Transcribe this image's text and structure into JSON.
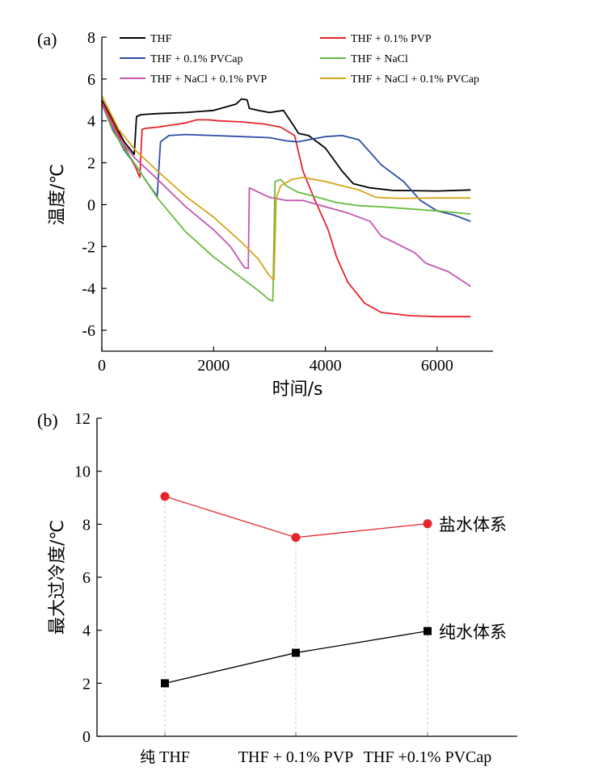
{
  "chart_data": [
    {
      "type": "line",
      "panel_label": "(a)",
      "xlabel": "时间/s",
      "ylabel": "温度/℃",
      "xlim": [
        0,
        7000
      ],
      "ylim": [
        -7,
        8
      ],
      "xticks": [
        0,
        2000,
        4000,
        6000
      ],
      "yticks": [
        8,
        6,
        4,
        2,
        0,
        -2,
        -4,
        -6
      ],
      "xtick_labels": [
        "0",
        "2000",
        "4000",
        "6000"
      ],
      "ytick_labels": [
        "8",
        "6",
        "4",
        "2",
        "0",
        "-2",
        "-4",
        "-6"
      ],
      "legend_placement": "top",
      "series": [
        {
          "name": "THF",
          "color": "#000000",
          "points": [
            [
              0,
              5.0
            ],
            [
              200,
              4.0
            ],
            [
              400,
              3.0
            ],
            [
              580,
              2.4
            ],
            [
              620,
              4.2
            ],
            [
              700,
              4.3
            ],
            [
              1000,
              4.35
            ],
            [
              1500,
              4.4
            ],
            [
              2000,
              4.5
            ],
            [
              2400,
              4.8
            ],
            [
              2500,
              5.05
            ],
            [
              2600,
              5.0
            ],
            [
              2640,
              4.6
            ],
            [
              2800,
              4.5
            ],
            [
              3000,
              4.4
            ],
            [
              3250,
              4.5
            ],
            [
              3350,
              4.1
            ],
            [
              3450,
              3.7
            ],
            [
              3520,
              3.4
            ],
            [
              3700,
              3.3
            ],
            [
              4000,
              2.7
            ],
            [
              4300,
              1.6
            ],
            [
              4500,
              1.0
            ],
            [
              4800,
              0.8
            ],
            [
              5200,
              0.68
            ],
            [
              6000,
              0.65
            ],
            [
              6600,
              0.7
            ]
          ]
        },
        {
          "name": "THF + 0.1% PVP",
          "color": "#e4262b",
          "points": [
            [
              0,
              4.9
            ],
            [
              200,
              3.9
            ],
            [
              400,
              2.8
            ],
            [
              600,
              1.8
            ],
            [
              680,
              1.3
            ],
            [
              720,
              3.6
            ],
            [
              800,
              3.65
            ],
            [
              1000,
              3.7
            ],
            [
              1500,
              3.9
            ],
            [
              1700,
              4.05
            ],
            [
              1900,
              4.05
            ],
            [
              2100,
              4.0
            ],
            [
              2500,
              3.95
            ],
            [
              2900,
              3.85
            ],
            [
              3200,
              3.7
            ],
            [
              3450,
              3.3
            ],
            [
              3600,
              1.6
            ],
            [
              3800,
              0.3
            ],
            [
              3950,
              -0.6
            ],
            [
              4050,
              -1.2
            ],
            [
              4200,
              -2.5
            ],
            [
              4400,
              -3.7
            ],
            [
              4700,
              -4.7
            ],
            [
              5000,
              -5.15
            ],
            [
              5500,
              -5.3
            ],
            [
              6000,
              -5.35
            ],
            [
              6600,
              -5.35
            ]
          ]
        },
        {
          "name": "THF + 0.1% PVCap",
          "color": "#2b4fa8",
          "points": [
            [
              0,
              4.8
            ],
            [
              200,
              3.6
            ],
            [
              400,
              2.6
            ],
            [
              600,
              1.9
            ],
            [
              800,
              1.1
            ],
            [
              990,
              0.4
            ],
            [
              1050,
              3.0
            ],
            [
              1200,
              3.3
            ],
            [
              1500,
              3.35
            ],
            [
              2000,
              3.3
            ],
            [
              2500,
              3.25
            ],
            [
              3000,
              3.2
            ],
            [
              3300,
              3.05
            ],
            [
              3500,
              3.0
            ],
            [
              3700,
              3.1
            ],
            [
              4000,
              3.25
            ],
            [
              4300,
              3.3
            ],
            [
              4600,
              3.1
            ],
            [
              4800,
              2.5
            ],
            [
              5000,
              1.9
            ],
            [
              5400,
              1.1
            ],
            [
              5700,
              0.2
            ],
            [
              6000,
              -0.3
            ],
            [
              6300,
              -0.5
            ],
            [
              6600,
              -0.8
            ]
          ]
        },
        {
          "name": "THF + NaCl",
          "color": "#66bb3d",
          "points": [
            [
              0,
              4.8
            ],
            [
              200,
              3.5
            ],
            [
              500,
              2.3
            ],
            [
              800,
              1.1
            ],
            [
              1000,
              0.3
            ],
            [
              1500,
              -1.3
            ],
            [
              2000,
              -2.5
            ],
            [
              2500,
              -3.5
            ],
            [
              2800,
              -4.1
            ],
            [
              3000,
              -4.55
            ],
            [
              3060,
              -4.6
            ],
            [
              3100,
              1.1
            ],
            [
              3200,
              1.2
            ],
            [
              3300,
              0.9
            ],
            [
              3500,
              0.6
            ],
            [
              3800,
              0.4
            ],
            [
              4200,
              0.1
            ],
            [
              4600,
              -0.05
            ],
            [
              5000,
              -0.1
            ],
            [
              5500,
              -0.2
            ],
            [
              6000,
              -0.3
            ],
            [
              6600,
              -0.45
            ]
          ]
        },
        {
          "name": "THF + NaCl + 0.1% PVP",
          "color": "#c456b0",
          "points": [
            [
              0,
              4.8
            ],
            [
              300,
              3.2
            ],
            [
              600,
              2.2
            ],
            [
              1000,
              1.2
            ],
            [
              1500,
              -0.1
            ],
            [
              2000,
              -1.2
            ],
            [
              2300,
              -2.0
            ],
            [
              2550,
              -3.0
            ],
            [
              2620,
              -3.05
            ],
            [
              2640,
              0.8
            ],
            [
              2800,
              0.6
            ],
            [
              3000,
              0.35
            ],
            [
              3300,
              0.2
            ],
            [
              3600,
              0.2
            ],
            [
              4000,
              -0.1
            ],
            [
              4400,
              -0.4
            ],
            [
              4800,
              -0.8
            ],
            [
              5000,
              -1.5
            ],
            [
              5300,
              -1.9
            ],
            [
              5600,
              -2.3
            ],
            [
              5800,
              -2.8
            ],
            [
              6200,
              -3.2
            ],
            [
              6600,
              -3.9
            ]
          ]
        },
        {
          "name": "THF + NaCl + 0.1% PVCap",
          "color": "#d5a41a",
          "points": [
            [
              0,
              5.2
            ],
            [
              300,
              3.6
            ],
            [
              600,
              2.6
            ],
            [
              1000,
              1.6
            ],
            [
              1500,
              0.4
            ],
            [
              2000,
              -0.6
            ],
            [
              2500,
              -1.8
            ],
            [
              2800,
              -2.6
            ],
            [
              3000,
              -3.4
            ],
            [
              3080,
              -3.6
            ],
            [
              3120,
              0.3
            ],
            [
              3200,
              0.9
            ],
            [
              3400,
              1.2
            ],
            [
              3600,
              1.3
            ],
            [
              3800,
              1.2
            ],
            [
              4000,
              1.1
            ],
            [
              4300,
              0.9
            ],
            [
              4600,
              0.7
            ],
            [
              4900,
              0.35
            ],
            [
              5300,
              0.3
            ],
            [
              6000,
              0.32
            ],
            [
              6600,
              0.32
            ]
          ]
        }
      ]
    },
    {
      "type": "line",
      "panel_label": "(b)",
      "xlabel": "",
      "ylabel": "最大过冷度/℃",
      "ylim": [
        0,
        12
      ],
      "yticks": [
        0,
        2,
        4,
        6,
        8,
        10,
        12
      ],
      "ytick_labels": [
        "0",
        "2",
        "4",
        "6",
        "8",
        "10",
        "12"
      ],
      "categories": [
        "纯 THF",
        "THF + 0.1% PVP",
        "THF +0.1% PVCap"
      ],
      "grid": "vertical dashed lines at categories",
      "series": [
        {
          "name": "盐水体系",
          "color": "#e4262b",
          "marker": "circle",
          "values": [
            9.05,
            7.5,
            8.02
          ]
        },
        {
          "name": "纯水体系",
          "color": "#000000",
          "marker": "square",
          "values": [
            2.0,
            3.15,
            3.97
          ]
        }
      ]
    }
  ]
}
